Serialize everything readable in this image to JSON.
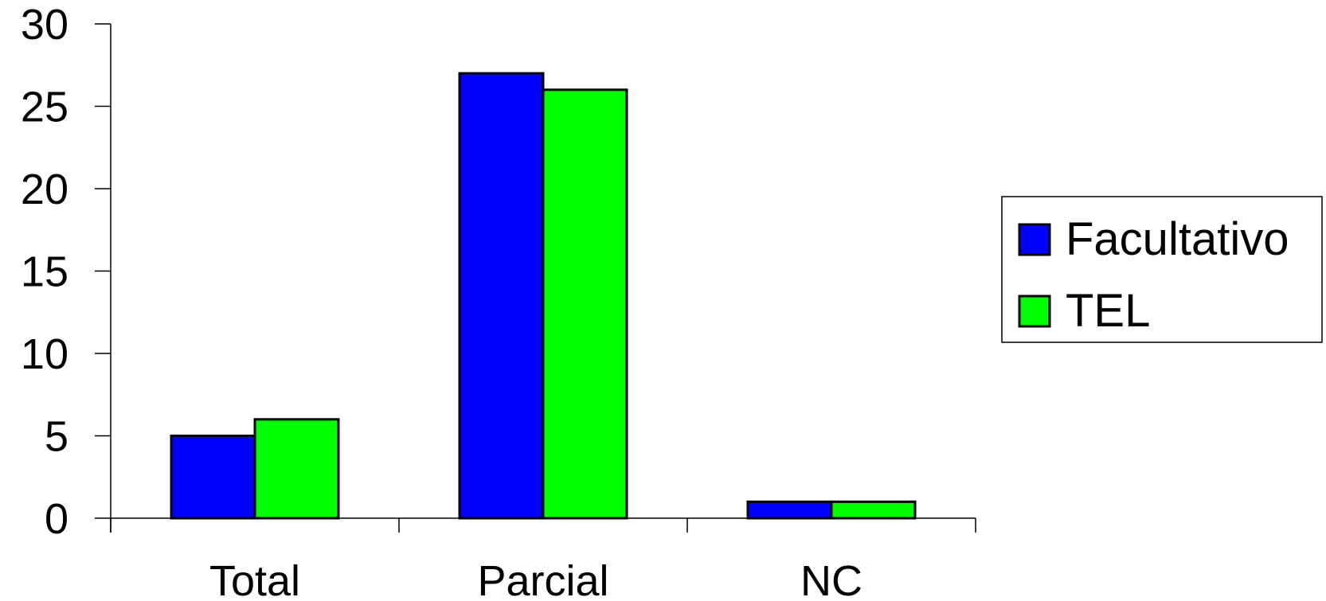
{
  "chart_data": {
    "type": "bar",
    "categories": [
      "Total",
      "Parcial",
      "NC"
    ],
    "series": [
      {
        "name": "Facultativo",
        "values": [
          5,
          27,
          1
        ],
        "color": "#0000ff"
      },
      {
        "name": "TEL",
        "values": [
          6,
          26,
          1
        ],
        "color": "#00ff00"
      }
    ],
    "yticks": [
      "0",
      "5",
      "10",
      "15",
      "20",
      "25",
      "30"
    ],
    "ylim": [
      0,
      30
    ],
    "grid": false,
    "legend_position": "right"
  }
}
